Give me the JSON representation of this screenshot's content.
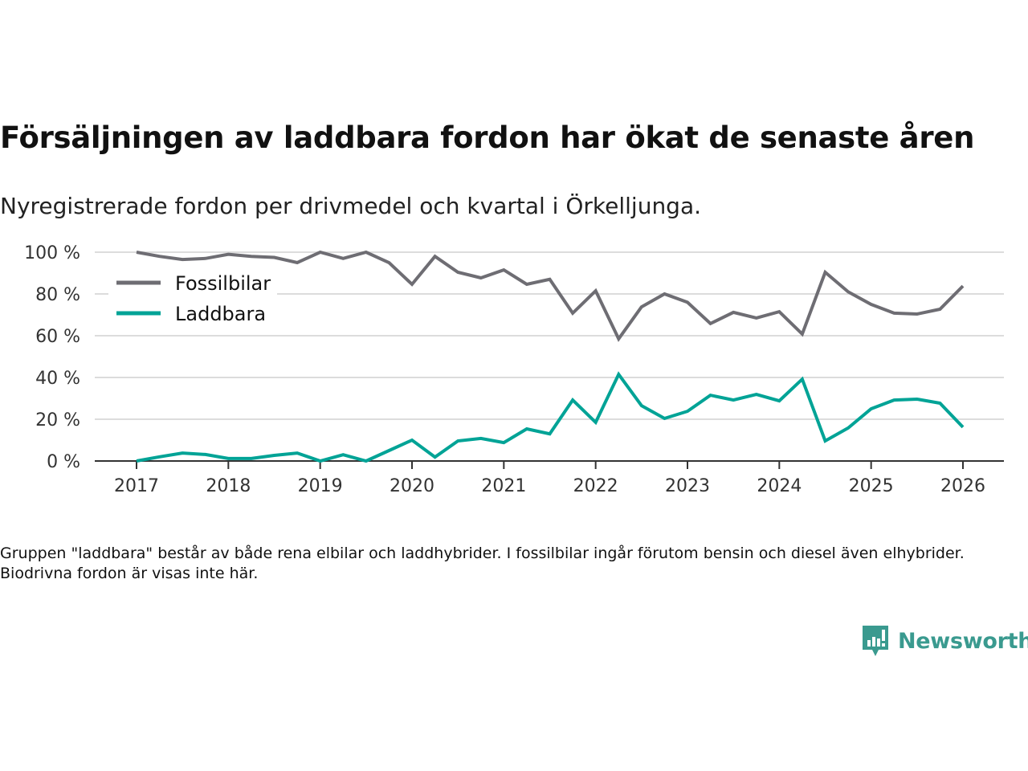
{
  "title": "Försäljningen av laddbara fordon har ökat de senaste åren",
  "subtitle": "Nyregistrerade fordon per drivmedel och kvartal i Örkelljunga.",
  "note": "Gruppen \"laddbara\" består av både rena elbilar och laddhybrider. I fossilbilar ingår förutom bensin och diesel även elhybrider. Biodrivna fordon är visas inte här.",
  "brand": {
    "name": "Newsworthy",
    "color": "#3a9a8f"
  },
  "chart_data": {
    "type": "line",
    "title": "Försäljningen av laddbara fordon har ökat de senaste åren",
    "xlabel": "",
    "ylabel": "",
    "x_start": 2017,
    "x_step": 0.25,
    "xlim": [
      2016.55,
      2026.45
    ],
    "ylim": [
      0,
      100
    ],
    "yticks": [
      0,
      20,
      40,
      60,
      80,
      100
    ],
    "ytick_labels": [
      "0 %",
      "20 %",
      "40 %",
      "60 %",
      "80 %",
      "100 %"
    ],
    "xticks": [
      2017,
      2018,
      2019,
      2020,
      2021,
      2022,
      2023,
      2024,
      2025,
      2026
    ],
    "xtick_labels": [
      "2017",
      "2018",
      "2019",
      "2020",
      "2021",
      "2022",
      "2023",
      "2024",
      "2025",
      "2026"
    ],
    "grid": true,
    "legend_position": "top-left",
    "series": [
      {
        "name": "Fossilbilar",
        "color": "#6e6d73",
        "values": [
          100,
          98,
          96.5,
          97,
          99,
          98,
          97.5,
          95,
          100,
          97,
          100,
          95,
          84.6,
          98,
          90.4,
          87.7,
          91.5,
          84.6,
          87,
          70.8,
          81.5,
          58.5,
          73.8,
          80,
          76,
          65.8,
          71.2,
          68.5,
          71.5,
          60.8,
          90.4,
          81,
          75,
          70.8,
          70.4,
          72.7,
          83.8
        ]
      },
      {
        "name": "Laddbara",
        "color": "#00a396",
        "values": [
          0,
          2,
          3.8,
          3.1,
          1.2,
          1.2,
          2.7,
          3.8,
          0,
          3,
          0,
          5,
          10,
          1.9,
          9.6,
          10.8,
          8.8,
          15.4,
          13,
          29.2,
          18.5,
          41.5,
          26.5,
          20.4,
          23.8,
          31.5,
          29.2,
          31.9,
          28.8,
          39.2,
          9.6,
          15.8,
          25,
          29.2,
          29.6,
          27.7,
          16.2
        ]
      }
    ]
  }
}
